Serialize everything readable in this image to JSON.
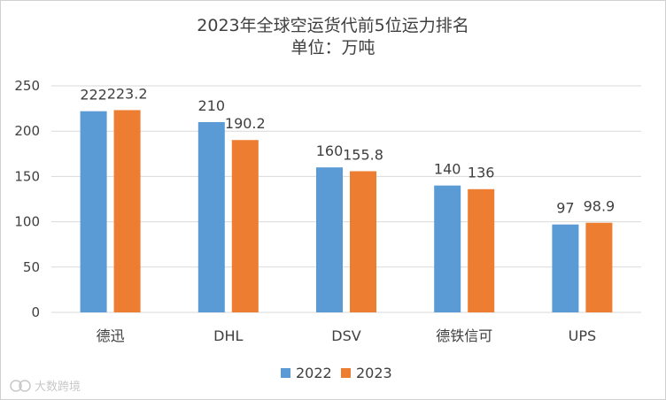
{
  "chart_data": {
    "type": "bar",
    "title": "2023年全球空运货代前5位运力排名",
    "subtitle": "单位：万吨",
    "categories": [
      "德迅",
      "DHL",
      "DSV",
      "德铁信可",
      "UPS"
    ],
    "series": [
      {
        "name": "2022",
        "values": [
          222,
          210,
          160,
          140,
          97
        ],
        "labels": [
          "222",
          "210",
          "160",
          "140",
          "97"
        ],
        "color": "#5B9BD5"
      },
      {
        "name": "2023",
        "values": [
          223.2,
          190.2,
          155.8,
          136,
          98.9
        ],
        "labels": [
          "223.2",
          "190.2",
          "155.8",
          "136",
          "98.9"
        ],
        "color": "#ED7D31"
      }
    ],
    "yticks": [
      0,
      50,
      100,
      150,
      200,
      250
    ],
    "ytick_labels": [
      "0",
      "50",
      "100",
      "150",
      "200",
      "250"
    ],
    "ylim": [
      0,
      250
    ],
    "grid": true,
    "legend": "bottom-center",
    "xlabel": "",
    "ylabel": ""
  },
  "watermark": {
    "text": "大数跨境",
    "icon": "brand-logo-icon"
  },
  "colors": {
    "grid": "#D9D9D9",
    "axis": "#D9D9D9",
    "text": "#404040"
  }
}
